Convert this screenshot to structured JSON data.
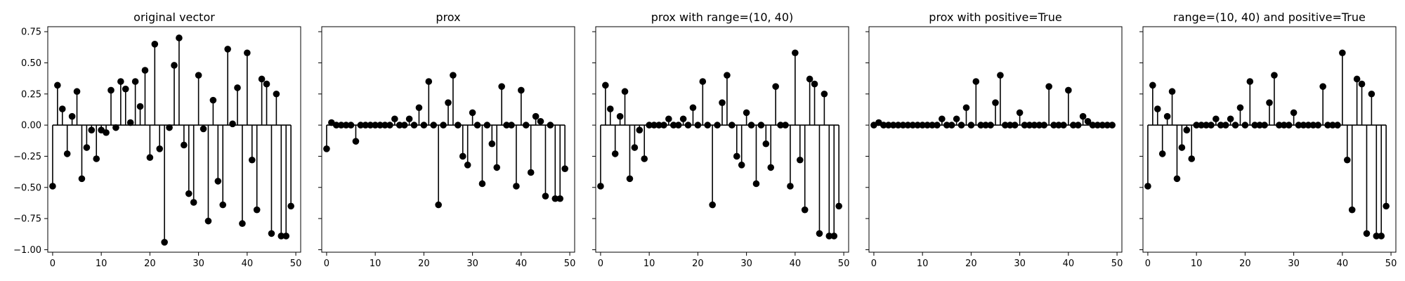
{
  "chart_data": [
    {
      "type": "stem",
      "title": "original vector",
      "x": [
        0,
        1,
        2,
        3,
        4,
        5,
        6,
        7,
        8,
        9,
        10,
        11,
        12,
        13,
        14,
        15,
        16,
        17,
        18,
        19,
        20,
        21,
        22,
        23,
        24,
        25,
        26,
        27,
        28,
        29,
        30,
        31,
        32,
        33,
        34,
        35,
        36,
        37,
        38,
        39,
        40,
        41,
        42,
        43,
        44,
        45,
        46,
        47,
        48,
        49
      ],
      "values": [
        -0.49,
        0.32,
        0.13,
        -0.23,
        0.07,
        0.27,
        -0.43,
        -0.18,
        -0.04,
        -0.27,
        -0.04,
        -0.06,
        0.28,
        -0.02,
        0.35,
        0.29,
        0.02,
        0.35,
        0.15,
        0.44,
        -0.26,
        0.65,
        -0.19,
        -0.94,
        -0.02,
        0.48,
        0.7,
        -0.16,
        -0.55,
        -0.62,
        0.4,
        -0.03,
        -0.77,
        0.2,
        -0.45,
        -0.64,
        0.61,
        0.01,
        0.3,
        -0.79,
        0.58,
        -0.28,
        -0.68,
        0.37,
        0.33,
        -0.87,
        0.25,
        -0.89,
        -0.89,
        -0.65
      ],
      "xlim": [
        -1,
        51
      ],
      "ylim": [
        -1.02,
        0.79
      ],
      "xticks": [
        0,
        10,
        20,
        30,
        40,
        50
      ],
      "yticks": [
        0.75,
        0.5,
        0.25,
        0.0,
        -0.25,
        -0.5,
        -0.75,
        -1.0
      ],
      "ytick_labels": [
        "0.75",
        "0.50",
        "0.25",
        "0.00",
        "−0.25",
        "−0.50",
        "−0.75",
        "−1.00"
      ],
      "color": "#000000"
    },
    {
      "type": "stem",
      "title": "prox",
      "x": [
        0,
        1,
        2,
        3,
        4,
        5,
        6,
        7,
        8,
        9,
        10,
        11,
        12,
        13,
        14,
        15,
        16,
        17,
        18,
        19,
        20,
        21,
        22,
        23,
        24,
        25,
        26,
        27,
        28,
        29,
        30,
        31,
        32,
        33,
        34,
        35,
        36,
        37,
        38,
        39,
        40,
        41,
        42,
        43,
        44,
        45,
        46,
        47,
        48,
        49
      ],
      "values": [
        -0.19,
        0.02,
        0,
        0,
        0,
        0,
        -0.13,
        0,
        0,
        0,
        0,
        0,
        0,
        0,
        0.05,
        0,
        0,
        0.05,
        0,
        0.14,
        0,
        0.35,
        0,
        -0.64,
        0,
        0.18,
        0.4,
        0,
        -0.25,
        -0.32,
        0.1,
        0,
        -0.47,
        0,
        -0.15,
        -0.34,
        0.31,
        0,
        0,
        -0.49,
        0.28,
        0,
        -0.38,
        0.07,
        0.03,
        -0.57,
        0,
        -0.59,
        -0.59,
        -0.35
      ],
      "xlim": [
        -1,
        51
      ],
      "ylim": [
        -1.02,
        0.79
      ],
      "xticks": [
        0,
        10,
        20,
        30,
        40,
        50
      ],
      "yticks": [
        0.75,
        0.5,
        0.25,
        0.0,
        -0.25,
        -0.5,
        -0.75,
        -1.0
      ],
      "color": "#000000"
    },
    {
      "type": "stem",
      "title": "prox with range=(10, 40)",
      "x": [
        0,
        1,
        2,
        3,
        4,
        5,
        6,
        7,
        8,
        9,
        10,
        11,
        12,
        13,
        14,
        15,
        16,
        17,
        18,
        19,
        20,
        21,
        22,
        23,
        24,
        25,
        26,
        27,
        28,
        29,
        30,
        31,
        32,
        33,
        34,
        35,
        36,
        37,
        38,
        39,
        40,
        41,
        42,
        43,
        44,
        45,
        46,
        47,
        48,
        49
      ],
      "values": [
        -0.49,
        0.32,
        0.13,
        -0.23,
        0.07,
        0.27,
        -0.43,
        -0.18,
        -0.04,
        -0.27,
        0,
        0,
        0,
        0,
        0.05,
        0,
        0,
        0.05,
        0,
        0.14,
        0,
        0.35,
        0,
        -0.64,
        0,
        0.18,
        0.4,
        0,
        -0.25,
        -0.32,
        0.1,
        0,
        -0.47,
        0,
        -0.15,
        -0.34,
        0.31,
        0,
        0,
        -0.49,
        0.58,
        -0.28,
        -0.68,
        0.37,
        0.33,
        -0.87,
        0.25,
        -0.89,
        -0.89,
        -0.65
      ],
      "xlim": [
        -1,
        51
      ],
      "ylim": [
        -1.02,
        0.79
      ],
      "xticks": [
        0,
        10,
        20,
        30,
        40,
        50
      ],
      "yticks": [
        0.75,
        0.5,
        0.25,
        0.0,
        -0.25,
        -0.5,
        -0.75,
        -1.0
      ],
      "color": "#000000"
    },
    {
      "type": "stem",
      "title": "prox with positive=True",
      "x": [
        0,
        1,
        2,
        3,
        4,
        5,
        6,
        7,
        8,
        9,
        10,
        11,
        12,
        13,
        14,
        15,
        16,
        17,
        18,
        19,
        20,
        21,
        22,
        23,
        24,
        25,
        26,
        27,
        28,
        29,
        30,
        31,
        32,
        33,
        34,
        35,
        36,
        37,
        38,
        39,
        40,
        41,
        42,
        43,
        44,
        45,
        46,
        47,
        48,
        49
      ],
      "values": [
        0,
        0.02,
        0,
        0,
        0,
        0,
        0,
        0,
        0,
        0,
        0,
        0,
        0,
        0,
        0.05,
        0,
        0,
        0.05,
        0,
        0.14,
        0,
        0.35,
        0,
        0,
        0,
        0.18,
        0.4,
        0,
        0,
        0,
        0.1,
        0,
        0,
        0,
        0,
        0,
        0.31,
        0,
        0,
        0,
        0.28,
        0,
        0,
        0.07,
        0.03,
        0,
        0,
        0,
        0,
        0
      ],
      "xlim": [
        -1,
        51
      ],
      "ylim": [
        -1.02,
        0.79
      ],
      "xticks": [
        0,
        10,
        20,
        30,
        40,
        50
      ],
      "yticks": [
        0.75,
        0.5,
        0.25,
        0.0,
        -0.25,
        -0.5,
        -0.75,
        -1.0
      ],
      "color": "#000000"
    },
    {
      "type": "stem",
      "title": "range=(10, 40) and positive=True",
      "x": [
        0,
        1,
        2,
        3,
        4,
        5,
        6,
        7,
        8,
        9,
        10,
        11,
        12,
        13,
        14,
        15,
        16,
        17,
        18,
        19,
        20,
        21,
        22,
        23,
        24,
        25,
        26,
        27,
        28,
        29,
        30,
        31,
        32,
        33,
        34,
        35,
        36,
        37,
        38,
        39,
        40,
        41,
        42,
        43,
        44,
        45,
        46,
        47,
        48,
        49
      ],
      "values": [
        -0.49,
        0.32,
        0.13,
        -0.23,
        0.07,
        0.27,
        -0.43,
        -0.18,
        -0.04,
        -0.27,
        0,
        0,
        0,
        0,
        0.05,
        0,
        0,
        0.05,
        0,
        0.14,
        0,
        0.35,
        0,
        0,
        0,
        0.18,
        0.4,
        0,
        0,
        0,
        0.1,
        0,
        0,
        0,
        0,
        0,
        0.31,
        0,
        0,
        0,
        0.58,
        -0.28,
        -0.68,
        0.37,
        0.33,
        -0.87,
        0.25,
        -0.89,
        -0.89,
        -0.65
      ],
      "xlim": [
        -1,
        51
      ],
      "ylim": [
        -1.02,
        0.79
      ],
      "xticks": [
        0,
        10,
        20,
        30,
        40,
        50
      ],
      "yticks": [
        0.75,
        0.5,
        0.25,
        0.0,
        -0.25,
        -0.5,
        -0.75,
        -1.0
      ],
      "color": "#000000"
    }
  ]
}
